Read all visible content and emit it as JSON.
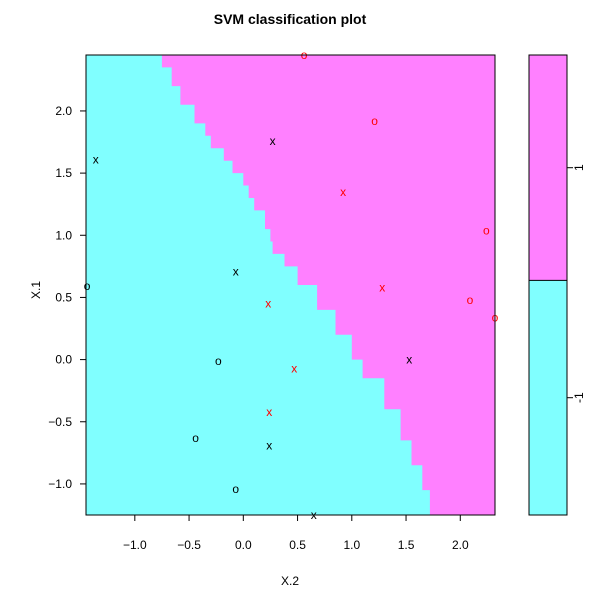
{
  "chart_data": {
    "type": "scatter",
    "title": "SVM classification plot",
    "xlabel": "X.2",
    "ylabel": "X.1",
    "xlim": [
      -1.45,
      2.32
    ],
    "ylim": [
      -1.25,
      2.45
    ],
    "x_ticks": [
      -1.0,
      -0.5,
      0.0,
      0.5,
      1.0,
      1.5,
      2.0
    ],
    "x_tick_labels": [
      "−1.0",
      "−0.5",
      "0.0",
      "0.5",
      "1.0",
      "1.5",
      "2.0"
    ],
    "y_ticks": [
      -1.0,
      -0.5,
      0.0,
      0.5,
      1.0,
      1.5,
      2.0
    ],
    "y_tick_labels": [
      "−1.0",
      "−0.5",
      "0.0",
      "0.5",
      "1.0",
      "1.5",
      "2.0"
    ],
    "grid": false,
    "legend": "none",
    "colors": {
      "region_class1": "#80ffff",
      "region_class2": "#ff80ff",
      "point_class1": "#000000",
      "point_class2": "#ff0000"
    },
    "decision_boundary": [
      [
        -0.83,
        2.45
      ],
      [
        -0.75,
        2.35
      ],
      [
        -0.66,
        2.2
      ],
      [
        -0.58,
        2.05
      ],
      [
        -0.45,
        1.9
      ],
      [
        -0.35,
        1.8
      ],
      [
        -0.3,
        1.7
      ],
      [
        -0.18,
        1.6
      ],
      [
        -0.1,
        1.5
      ],
      [
        0.0,
        1.4
      ],
      [
        0.05,
        1.3
      ],
      [
        0.1,
        1.2
      ],
      [
        0.2,
        1.05
      ],
      [
        0.25,
        0.95
      ],
      [
        0.27,
        0.85
      ],
      [
        0.38,
        0.75
      ],
      [
        0.5,
        0.6
      ],
      [
        0.68,
        0.4
      ],
      [
        0.85,
        0.2
      ],
      [
        1.0,
        0.0
      ],
      [
        1.1,
        -0.15
      ],
      [
        1.3,
        -0.4
      ],
      [
        1.45,
        -0.65
      ],
      [
        1.55,
        -0.85
      ],
      [
        1.65,
        -1.05
      ],
      [
        1.72,
        -1.25
      ]
    ],
    "points": [
      {
        "x": 0.56,
        "y": 2.45,
        "marker": "o",
        "class": 2
      },
      {
        "x": 1.21,
        "y": 1.92,
        "marker": "o",
        "class": 2
      },
      {
        "x": 0.27,
        "y": 1.76,
        "marker": "x",
        "class": 1
      },
      {
        "x": -1.36,
        "y": 1.61,
        "marker": "x",
        "class": 1
      },
      {
        "x": 0.92,
        "y": 1.35,
        "marker": "x",
        "class": 2
      },
      {
        "x": 2.24,
        "y": 1.04,
        "marker": "o",
        "class": 2
      },
      {
        "x": -0.07,
        "y": 0.71,
        "marker": "x",
        "class": 1
      },
      {
        "x": -1.44,
        "y": 0.59,
        "marker": "o",
        "class": 1
      },
      {
        "x": 1.28,
        "y": 0.58,
        "marker": "x",
        "class": 2
      },
      {
        "x": 2.09,
        "y": 0.48,
        "marker": "o",
        "class": 2
      },
      {
        "x": 0.23,
        "y": 0.45,
        "marker": "x",
        "class": 2
      },
      {
        "x": 2.32,
        "y": 0.34,
        "marker": "o",
        "class": 2
      },
      {
        "x": -0.23,
        "y": -0.01,
        "marker": "o",
        "class": 1
      },
      {
        "x": 1.53,
        "y": 0.0,
        "marker": "x",
        "class": 1
      },
      {
        "x": 0.47,
        "y": -0.07,
        "marker": "x",
        "class": 2
      },
      {
        "x": 0.24,
        "y": -0.42,
        "marker": "x",
        "class": 2
      },
      {
        "x": -0.44,
        "y": -0.63,
        "marker": "o",
        "class": 1
      },
      {
        "x": 0.24,
        "y": -0.69,
        "marker": "x",
        "class": 1
      },
      {
        "x": -0.07,
        "y": -1.04,
        "marker": "o",
        "class": 1
      },
      {
        "x": 0.65,
        "y": -1.25,
        "marker": "x",
        "class": 1
      }
    ],
    "color_key": {
      "split_fraction": 0.51,
      "tick_label_class1": "-1",
      "tick_label_class2": "1"
    }
  }
}
